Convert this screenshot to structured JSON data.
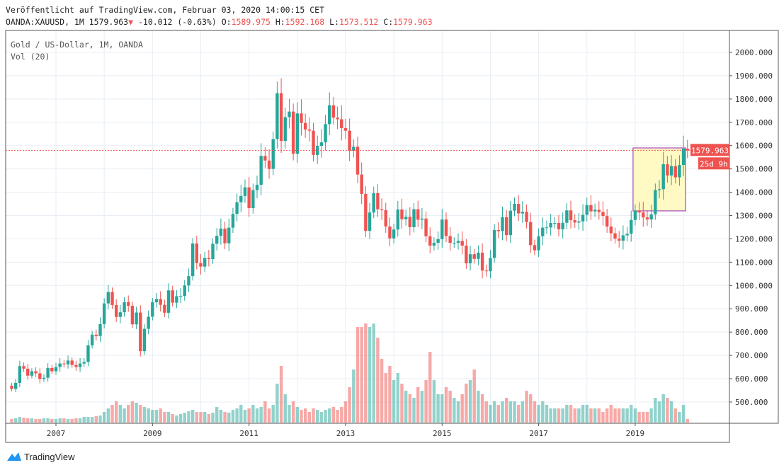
{
  "header": {
    "published": "Veröffentlicht auf TradingView.com, Februar 03, 2020 14:00:15 CET",
    "symbol": "OANDA:XAUUSD, 1M",
    "last": "1579.963",
    "change": "-10.012 (-0.63%)",
    "o_label": "O:",
    "o": "1589.975",
    "h_label": "H:",
    "h": "1592.168",
    "l_label": "L:",
    "l": "1573.512",
    "c_label": "C:",
    "c": "1579.963"
  },
  "legend": {
    "title": "Gold  / US-Dollar, 1M, OANDA",
    "volume": "Vol (20)"
  },
  "footer": {
    "brand": "TradingView"
  },
  "colors": {
    "up": "#26a69a",
    "down": "#ef5350",
    "grid": "#e8eef4",
    "highlight_fill": "#fff9c4",
    "highlight_border": "#ab47bc"
  },
  "chart_data": {
    "type": "candlestick",
    "title": "Gold / US-Dollar, 1M, OANDA",
    "start_month": "2006-02",
    "closes": [
      556,
      582,
      654,
      643,
      613,
      632,
      623,
      599,
      604,
      646,
      632,
      650,
      665,
      662,
      678,
      659,
      650,
      665,
      672,
      743,
      789,
      783,
      834,
      923,
      972,
      916,
      865,
      885,
      928,
      913,
      833,
      884,
      718,
      814,
      866,
      928,
      942,
      917,
      883,
      979,
      926,
      954,
      955,
      1000,
      1040,
      1180,
      1096,
      1081,
      1118,
      1113,
      1179,
      1213,
      1244,
      1181,
      1248,
      1307,
      1357,
      1384,
      1421,
      1332,
      1409,
      1432,
      1556,
      1536,
      1500,
      1628,
      1825,
      1620,
      1722,
      1746,
      1565,
      1738,
      1697,
      1669,
      1664,
      1560,
      1599,
      1614,
      1692,
      1773,
      1720,
      1713,
      1675,
      1664,
      1578,
      1595,
      1476,
      1393,
      1234,
      1313,
      1396,
      1327,
      1323,
      1253,
      1202,
      1240,
      1326,
      1284,
      1295,
      1250,
      1327,
      1282,
      1287,
      1211,
      1171,
      1183,
      1199,
      1283,
      1212,
      1183,
      1183,
      1191,
      1171,
      1095,
      1134,
      1114,
      1141,
      1064,
      1061,
      1118,
      1238,
      1233,
      1293,
      1216,
      1321,
      1350,
      1309,
      1316,
      1272,
      1173,
      1151,
      1211,
      1248,
      1249,
      1268,
      1268,
      1241,
      1269,
      1322,
      1280,
      1270,
      1275,
      1303,
      1345,
      1318,
      1325,
      1315,
      1298,
      1253,
      1224,
      1201,
      1192,
      1215,
      1222,
      1281,
      1321,
      1313,
      1292,
      1283,
      1305,
      1409,
      1413,
      1520,
      1472,
      1512,
      1464,
      1517,
      1587,
      1579.963
    ],
    "first_open": 570,
    "volumes": [
      5,
      6,
      8,
      7,
      6,
      6,
      5,
      5,
      6,
      6,
      5,
      5,
      6,
      6,
      5,
      5,
      6,
      6,
      8,
      8,
      8,
      9,
      10,
      15,
      20,
      25,
      30,
      25,
      20,
      25,
      30,
      28,
      25,
      22,
      20,
      18,
      18,
      20,
      15,
      15,
      12,
      10,
      12,
      14,
      16,
      18,
      15,
      15,
      15,
      12,
      14,
      22,
      18,
      15,
      14,
      18,
      20,
      25,
      18,
      20,
      25,
      20,
      22,
      30,
      20,
      25,
      55,
      80,
      40,
      25,
      30,
      22,
      18,
      20,
      15,
      20,
      18,
      15,
      18,
      20,
      22,
      18,
      22,
      30,
      50,
      75,
      135,
      135,
      140,
      135,
      140,
      120,
      90,
      70,
      80,
      60,
      70,
      55,
      45,
      40,
      35,
      50,
      45,
      60,
      100,
      60,
      40,
      40,
      50,
      45,
      35,
      30,
      40,
      55,
      60,
      75,
      45,
      40,
      30,
      25,
      30,
      25,
      30,
      35,
      30,
      30,
      25,
      30,
      45,
      40,
      30,
      25,
      30,
      25,
      20,
      20,
      20,
      20,
      25,
      25,
      20,
      20,
      25,
      25,
      20,
      20,
      20,
      15,
      20,
      25,
      20,
      20,
      20,
      20,
      25,
      20,
      15,
      15,
      15,
      20,
      35,
      30,
      40,
      35,
      30,
      20,
      15,
      25,
      5
    ],
    "ylim": [
      400,
      2100
    ],
    "y_ticks": [
      "500.000",
      "600.000",
      "700.000",
      "800.000",
      "900.000",
      "1000.000",
      "1100.000",
      "1200.000",
      "1300.000",
      "1400.000",
      "1500.000",
      "1600.000",
      "1700.000",
      "1800.000",
      "1900.000",
      "2000.000"
    ],
    "x_ticks": [
      "2007",
      "2009",
      "2011",
      "2013",
      "2015",
      "2017",
      "2019"
    ],
    "last_price_label": "1579.963",
    "countdown_label": "25d 9h",
    "highlight": {
      "from": "2019-01",
      "to": "2020-01",
      "low": 1320,
      "high": 1590
    }
  }
}
